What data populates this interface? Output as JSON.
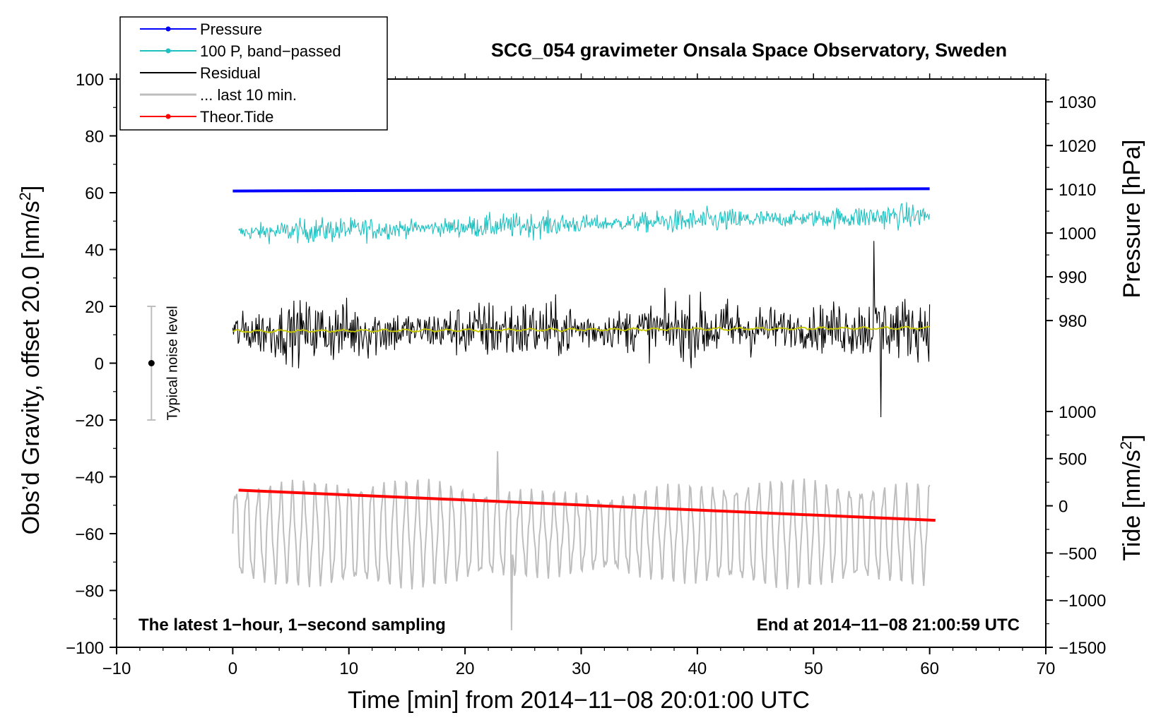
{
  "chart_data": {
    "type": "line",
    "title": "SCG_054 gravimeter Onsala Space Observatory, Sweden",
    "xlabel": "Time [min] from 2014−11−08 20:01:00 UTC",
    "ylabel": "Obs’d Gravity, offset 20.0 [nm/s",
    "ylabel_sup": "2",
    "ylabel_end": "]",
    "y2label": "Pressure [hPa]",
    "y3label": "Tide [nm/s",
    "y3label_sup": "2",
    "y3label_end": "]",
    "xlim": [
      -10,
      70
    ],
    "ylim": [
      -100,
      100
    ],
    "x_ticks": [
      -10,
      0,
      10,
      20,
      30,
      40,
      50,
      60,
      70
    ],
    "x_tick_labels": [
      "−10",
      "0",
      "10",
      "20",
      "30",
      "40",
      "50",
      "60",
      "70"
    ],
    "y_ticks": [
      -100,
      -80,
      -60,
      -40,
      -20,
      0,
      20,
      40,
      60,
      80,
      100
    ],
    "y_tick_labels": [
      "−100",
      "−80",
      "−60",
      "−40",
      "−20",
      "0",
      "20",
      "40",
      "60",
      "80",
      "100"
    ],
    "pressure_axis": {
      "ticks": [
        980,
        990,
        1000,
        1010,
        1020,
        1030
      ],
      "tick_labels": [
        "980",
        "990",
        "1000",
        "1010",
        "1020",
        "1030"
      ],
      "mapping_hpa_to_gravity": [
        [
          980,
          15
        ],
        [
          1030,
          92
        ]
      ]
    },
    "tide_axis": {
      "ticks": [
        -1500,
        -1000,
        -500,
        0,
        500,
        1000
      ],
      "tick_labels": [
        "−1500",
        "−1000",
        "−500",
        "0",
        "500",
        "1000"
      ],
      "mapping_tide_to_gravity": [
        [
          -1500,
          -100
        ],
        [
          1000,
          -17
        ]
      ]
    },
    "series": [
      {
        "name": "Pressure",
        "color": "#0000ff",
        "x": [
          0,
          60
        ],
        "values": [
          60.6,
          61.4
        ],
        "style": "thick"
      },
      {
        "name": "100 P, band−passed",
        "color": "#20c0c0",
        "x_range": [
          0.5,
          60
        ],
        "center_start": 46,
        "center_end": 52,
        "amplitude": 4,
        "style": "noise"
      },
      {
        "name": "Residual",
        "color": "#000000",
        "x_range": [
          0,
          60
        ],
        "center_start": 11,
        "center_end": 12.5,
        "amplitude": 10,
        "extrema": [
          43,
          -19
        ],
        "style": "noise"
      },
      {
        "name": "Residual smoothed",
        "color": "#c8c800",
        "x": [
          0,
          60
        ],
        "values": [
          11.2,
          12.4
        ],
        "style": "thin",
        "legend": false
      },
      {
        "name": "... last 10 min.",
        "color": "#bebebe",
        "x_range": [
          0,
          60
        ],
        "center": -60,
        "amplitude": 14,
        "extrema": [
          -31,
          -94
        ],
        "style": "oscillation"
      },
      {
        "name": "Theor.Tide",
        "color": "#ff0000",
        "x": [
          0.5,
          60.5
        ],
        "values": [
          -44.7,
          -55.3
        ],
        "style": "thick"
      }
    ],
    "legend": [
      {
        "label": "Pressure",
        "color": "#0000ff",
        "marker": true
      },
      {
        "label": "100 P, band−passed",
        "color": "#20c0c0",
        "marker": true
      },
      {
        "label": "Residual",
        "color": "#000000",
        "marker": false
      },
      {
        "label": "... last 10 min.",
        "color": "#bebebe",
        "marker": false
      },
      {
        "label": "Theor.Tide",
        "color": "#ff0000",
        "marker": true
      }
    ],
    "legend_position": "top-left",
    "noise_bar": {
      "label": "Typical noise level",
      "x": -7,
      "center": 0,
      "low": -20,
      "high": 20
    },
    "annotation_left": "The latest 1−hour, 1−second sampling",
    "annotation_right": "End at 2014−11−08 21:00:59 UTC"
  }
}
